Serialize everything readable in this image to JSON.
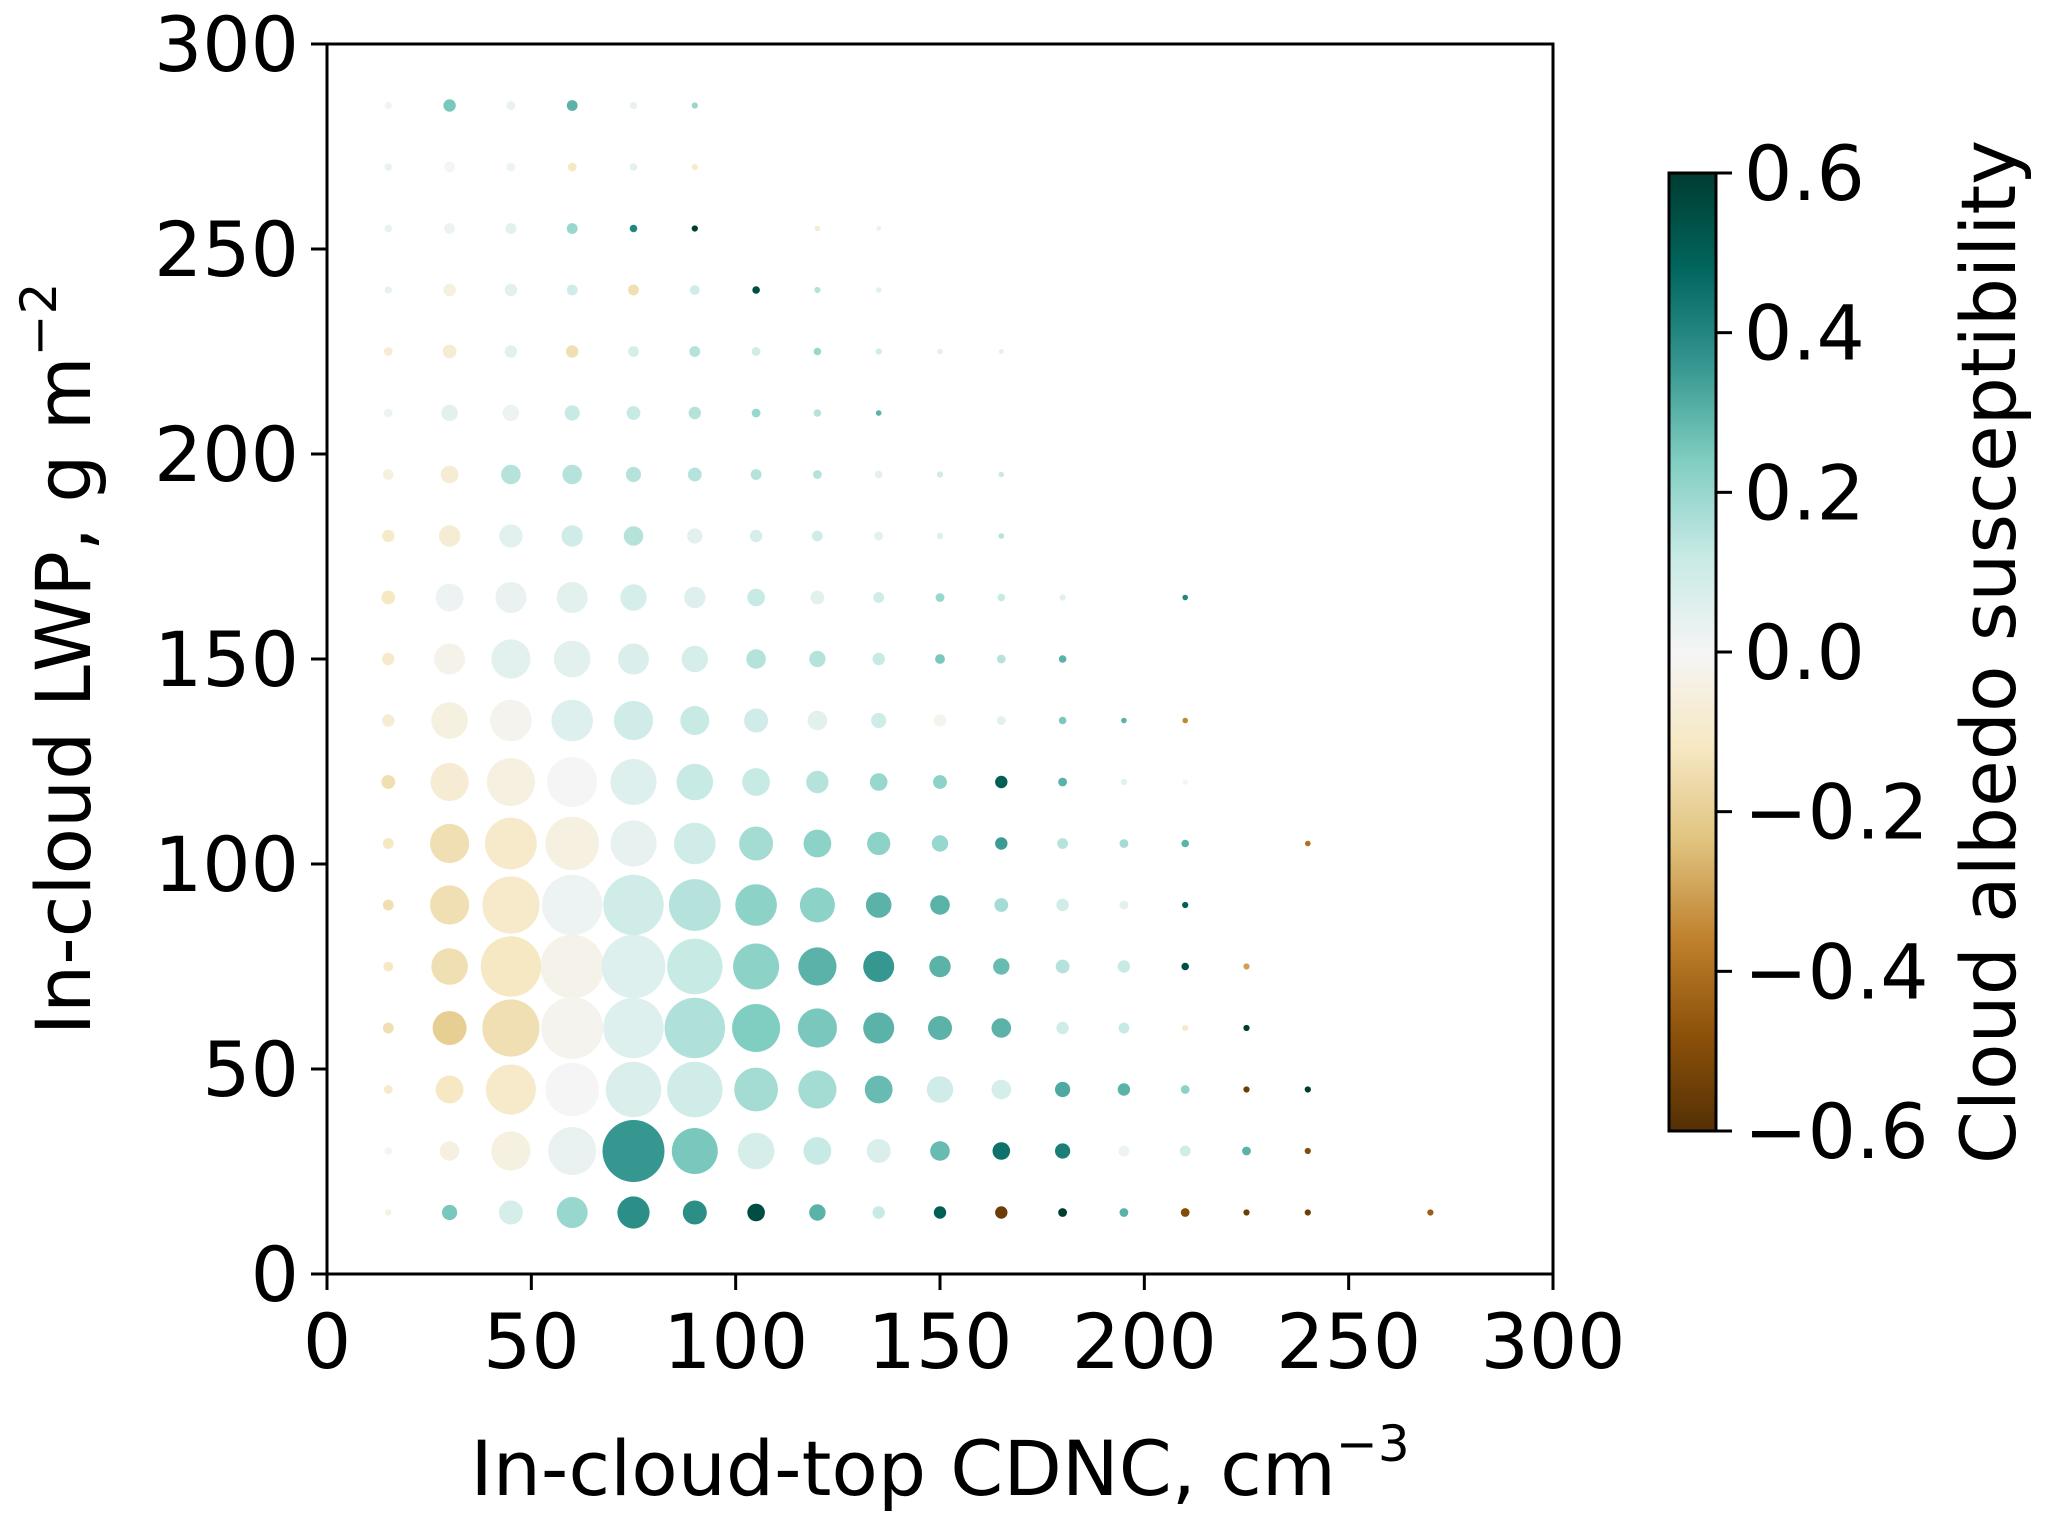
{
  "chart_data": {
    "type": "scatter",
    "encoding": "bubble: marker area shows sample frequency, marker colour shows cloud albedo susceptibility",
    "xlabel": {
      "text": "In-cloud-top CDNC, cm",
      "sup": "−3"
    },
    "ylabel": {
      "text": "In-cloud LWP, g m",
      "sup": "−2"
    },
    "xlim": [
      0,
      300
    ],
    "ylim": [
      0,
      300
    ],
    "xticks": [
      0,
      50,
      100,
      150,
      200,
      250,
      300
    ],
    "yticks": [
      0,
      50,
      100,
      150,
      200,
      250,
      300
    ],
    "xtick_labels": [
      "0",
      "50",
      "100",
      "150",
      "200",
      "250",
      "300"
    ],
    "ytick_labels": [
      "0",
      "50",
      "100",
      "150",
      "200",
      "250",
      "300"
    ],
    "grid": false,
    "colorbar": {
      "label": "Cloud albedo susceptibility",
      "range": [
        -0.6,
        0.6
      ],
      "ticks": [
        0.6,
        0.4,
        0.2,
        0.0,
        -0.2,
        -0.4,
        -0.6
      ],
      "tick_labels": [
        "0.6",
        "0.4",
        "0.2",
        "0.0",
        "−0.2",
        "−0.4",
        "−0.6"
      ],
      "colormap": "BrBG",
      "colormap_stops": [
        "#543005",
        "#8c510a",
        "#bf812d",
        "#dfc27d",
        "#f6e8c3",
        "#f5f5f5",
        "#c7eae5",
        "#80cdc1",
        "#35978f",
        "#01665e",
        "#003c30"
      ]
    },
    "point_fields": [
      "CDNC (cm^-3)",
      "LWP (g m^-2)",
      "albedo susceptibility",
      "relative frequency"
    ],
    "points": [
      [
        15,
        15,
        -0.05,
        0.01
      ],
      [
        30,
        15,
        0.25,
        0.06
      ],
      [
        45,
        15,
        0.08,
        0.15
      ],
      [
        60,
        15,
        0.2,
        0.25
      ],
      [
        75,
        15,
        0.38,
        0.27
      ],
      [
        90,
        15,
        0.38,
        0.15
      ],
      [
        105,
        15,
        0.55,
        0.08
      ],
      [
        120,
        15,
        0.3,
        0.07
      ],
      [
        135,
        15,
        0.12,
        0.04
      ],
      [
        150,
        15,
        0.5,
        0.04
      ],
      [
        165,
        15,
        -0.55,
        0.04
      ],
      [
        180,
        15,
        0.6,
        0.02
      ],
      [
        195,
        15,
        0.3,
        0.02
      ],
      [
        210,
        15,
        -0.5,
        0.02
      ],
      [
        225,
        15,
        -0.55,
        0.01
      ],
      [
        240,
        15,
        -0.55,
        0.01
      ],
      [
        270,
        15,
        -0.45,
        0.01
      ],
      [
        15,
        30,
        -0.02,
        0.015
      ],
      [
        30,
        30,
        -0.05,
        0.1
      ],
      [
        45,
        30,
        -0.05,
        0.4
      ],
      [
        60,
        30,
        0.03,
        0.6
      ],
      [
        75,
        30,
        0.36,
        1.0
      ],
      [
        90,
        30,
        0.25,
        0.55
      ],
      [
        105,
        30,
        0.08,
        0.35
      ],
      [
        120,
        30,
        0.12,
        0.2
      ],
      [
        135,
        30,
        0.07,
        0.15
      ],
      [
        150,
        30,
        0.28,
        0.1
      ],
      [
        165,
        30,
        0.45,
        0.08
      ],
      [
        180,
        30,
        0.42,
        0.06
      ],
      [
        195,
        30,
        0.02,
        0.03
      ],
      [
        210,
        30,
        0.1,
        0.03
      ],
      [
        225,
        30,
        0.3,
        0.02
      ],
      [
        240,
        30,
        -0.5,
        0.01
      ],
      [
        15,
        45,
        -0.1,
        0.02
      ],
      [
        30,
        45,
        -0.12,
        0.2
      ],
      [
        45,
        45,
        -0.1,
        0.65
      ],
      [
        60,
        45,
        0.0,
        0.75
      ],
      [
        75,
        45,
        0.07,
        0.8
      ],
      [
        90,
        45,
        0.1,
        0.8
      ],
      [
        105,
        45,
        0.18,
        0.5
      ],
      [
        120,
        45,
        0.18,
        0.38
      ],
      [
        135,
        45,
        0.28,
        0.2
      ],
      [
        150,
        45,
        0.1,
        0.18
      ],
      [
        165,
        45,
        0.08,
        0.1
      ],
      [
        180,
        45,
        0.32,
        0.06
      ],
      [
        195,
        45,
        0.3,
        0.04
      ],
      [
        210,
        45,
        0.22,
        0.02
      ],
      [
        225,
        45,
        -0.55,
        0.01
      ],
      [
        240,
        45,
        0.6,
        0.01
      ],
      [
        15,
        60,
        -0.15,
        0.03
      ],
      [
        30,
        60,
        -0.2,
        0.3
      ],
      [
        45,
        60,
        -0.15,
        0.85
      ],
      [
        60,
        60,
        -0.02,
        1.0
      ],
      [
        75,
        60,
        0.06,
        0.95
      ],
      [
        90,
        60,
        0.16,
        0.95
      ],
      [
        105,
        60,
        0.24,
        0.6
      ],
      [
        120,
        60,
        0.25,
        0.4
      ],
      [
        135,
        60,
        0.3,
        0.25
      ],
      [
        150,
        60,
        0.3,
        0.15
      ],
      [
        165,
        60,
        0.3,
        0.1
      ],
      [
        180,
        60,
        0.1,
        0.04
      ],
      [
        195,
        60,
        0.12,
        0.03
      ],
      [
        210,
        60,
        -0.1,
        0.01
      ],
      [
        225,
        60,
        0.6,
        0.01
      ],
      [
        15,
        75,
        -0.12,
        0.025
      ],
      [
        30,
        75,
        -0.15,
        0.35
      ],
      [
        45,
        75,
        -0.12,
        0.95
      ],
      [
        60,
        75,
        -0.03,
        1.05
      ],
      [
        75,
        75,
        0.06,
        1.05
      ],
      [
        90,
        75,
        0.12,
        0.8
      ],
      [
        105,
        75,
        0.22,
        0.55
      ],
      [
        120,
        75,
        0.3,
        0.38
      ],
      [
        135,
        75,
        0.36,
        0.25
      ],
      [
        150,
        75,
        0.3,
        0.12
      ],
      [
        165,
        75,
        0.28,
        0.07
      ],
      [
        180,
        75,
        0.15,
        0.05
      ],
      [
        195,
        75,
        0.12,
        0.04
      ],
      [
        210,
        75,
        0.55,
        0.015
      ],
      [
        225,
        75,
        -0.3,
        0.01
      ],
      [
        15,
        90,
        -0.15,
        0.03
      ],
      [
        30,
        90,
        -0.15,
        0.4
      ],
      [
        45,
        90,
        -0.1,
        0.85
      ],
      [
        60,
        90,
        0.02,
        0.95
      ],
      [
        75,
        90,
        0.1,
        0.95
      ],
      [
        90,
        90,
        0.15,
        0.7
      ],
      [
        105,
        90,
        0.22,
        0.45
      ],
      [
        120,
        90,
        0.22,
        0.32
      ],
      [
        135,
        90,
        0.3,
        0.17
      ],
      [
        150,
        90,
        0.3,
        0.1
      ],
      [
        165,
        90,
        0.18,
        0.05
      ],
      [
        180,
        90,
        0.1,
        0.04
      ],
      [
        195,
        90,
        0.05,
        0.02
      ],
      [
        210,
        90,
        0.5,
        0.01
      ],
      [
        15,
        105,
        -0.12,
        0.03
      ],
      [
        30,
        105,
        -0.15,
        0.4
      ],
      [
        45,
        105,
        -0.1,
        0.7
      ],
      [
        60,
        105,
        -0.05,
        0.75
      ],
      [
        75,
        105,
        0.04,
        0.55
      ],
      [
        90,
        105,
        0.1,
        0.45
      ],
      [
        105,
        105,
        0.18,
        0.3
      ],
      [
        120,
        105,
        0.22,
        0.2
      ],
      [
        135,
        105,
        0.22,
        0.14
      ],
      [
        150,
        105,
        0.2,
        0.07
      ],
      [
        165,
        105,
        0.35,
        0.04
      ],
      [
        180,
        105,
        0.15,
        0.03
      ],
      [
        195,
        105,
        0.18,
        0.02
      ],
      [
        210,
        105,
        0.3,
        0.015
      ],
      [
        240,
        105,
        -0.4,
        0.008
      ],
      [
        15,
        120,
        -0.15,
        0.05
      ],
      [
        30,
        120,
        -0.08,
        0.38
      ],
      [
        45,
        120,
        -0.05,
        0.6
      ],
      [
        60,
        120,
        0.0,
        0.65
      ],
      [
        75,
        120,
        0.06,
        0.55
      ],
      [
        90,
        120,
        0.12,
        0.35
      ],
      [
        105,
        120,
        0.12,
        0.2
      ],
      [
        120,
        120,
        0.15,
        0.13
      ],
      [
        135,
        120,
        0.2,
        0.08
      ],
      [
        150,
        120,
        0.22,
        0.05
      ],
      [
        165,
        120,
        0.5,
        0.04
      ],
      [
        180,
        120,
        0.3,
        0.02
      ],
      [
        195,
        120,
        0.05,
        0.01
      ],
      [
        210,
        120,
        0.0,
        0.008
      ],
      [
        15,
        135,
        -0.08,
        0.04
      ],
      [
        30,
        135,
        -0.05,
        0.35
      ],
      [
        45,
        135,
        -0.02,
        0.45
      ],
      [
        60,
        135,
        0.06,
        0.45
      ],
      [
        75,
        135,
        0.1,
        0.4
      ],
      [
        90,
        135,
        0.12,
        0.22
      ],
      [
        105,
        135,
        0.1,
        0.15
      ],
      [
        120,
        135,
        0.05,
        0.1
      ],
      [
        135,
        135,
        0.1,
        0.06
      ],
      [
        150,
        135,
        -0.02,
        0.04
      ],
      [
        165,
        135,
        0.05,
        0.02
      ],
      [
        180,
        135,
        0.25,
        0.015
      ],
      [
        195,
        135,
        0.3,
        0.008
      ],
      [
        210,
        135,
        -0.35,
        0.008
      ],
      [
        15,
        150,
        -0.1,
        0.04
      ],
      [
        30,
        150,
        -0.03,
        0.25
      ],
      [
        45,
        150,
        0.05,
        0.4
      ],
      [
        60,
        150,
        0.05,
        0.35
      ],
      [
        75,
        150,
        0.07,
        0.25
      ],
      [
        90,
        150,
        0.08,
        0.18
      ],
      [
        105,
        150,
        0.15,
        0.1
      ],
      [
        120,
        150,
        0.15,
        0.07
      ],
      [
        135,
        150,
        0.12,
        0.04
      ],
      [
        150,
        150,
        0.25,
        0.025
      ],
      [
        165,
        150,
        0.15,
        0.02
      ],
      [
        180,
        150,
        0.3,
        0.015
      ],
      [
        15,
        165,
        -0.12,
        0.05
      ],
      [
        30,
        165,
        0.02,
        0.2
      ],
      [
        45,
        165,
        0.03,
        0.25
      ],
      [
        60,
        165,
        0.05,
        0.25
      ],
      [
        75,
        165,
        0.08,
        0.18
      ],
      [
        90,
        165,
        0.06,
        0.12
      ],
      [
        105,
        165,
        0.12,
        0.08
      ],
      [
        120,
        165,
        0.05,
        0.05
      ],
      [
        135,
        165,
        0.1,
        0.03
      ],
      [
        150,
        165,
        0.2,
        0.02
      ],
      [
        165,
        165,
        0.12,
        0.015
      ],
      [
        180,
        165,
        0.05,
        0.01
      ],
      [
        210,
        165,
        0.4,
        0.008
      ],
      [
        15,
        180,
        -0.1,
        0.04
      ],
      [
        30,
        180,
        -0.08,
        0.12
      ],
      [
        45,
        180,
        0.05,
        0.14
      ],
      [
        60,
        180,
        0.1,
        0.12
      ],
      [
        75,
        180,
        0.15,
        0.1
      ],
      [
        90,
        180,
        0.05,
        0.06
      ],
      [
        105,
        180,
        0.08,
        0.04
      ],
      [
        120,
        180,
        0.1,
        0.03
      ],
      [
        135,
        180,
        0.05,
        0.02
      ],
      [
        150,
        180,
        0.06,
        0.01
      ],
      [
        165,
        180,
        0.15,
        0.008
      ],
      [
        15,
        195,
        -0.05,
        0.03
      ],
      [
        30,
        195,
        -0.08,
        0.08
      ],
      [
        45,
        195,
        0.15,
        0.1
      ],
      [
        60,
        195,
        0.15,
        0.1
      ],
      [
        75,
        195,
        0.15,
        0.06
      ],
      [
        90,
        195,
        0.15,
        0.05
      ],
      [
        105,
        195,
        0.15,
        0.03
      ],
      [
        120,
        195,
        0.15,
        0.02
      ],
      [
        135,
        195,
        0.05,
        0.015
      ],
      [
        150,
        195,
        0.1,
        0.01
      ],
      [
        165,
        195,
        0.12,
        0.008
      ],
      [
        15,
        210,
        0.02,
        0.02
      ],
      [
        30,
        210,
        0.05,
        0.07
      ],
      [
        45,
        210,
        0.02,
        0.07
      ],
      [
        60,
        210,
        0.12,
        0.06
      ],
      [
        75,
        210,
        0.12,
        0.05
      ],
      [
        90,
        210,
        0.15,
        0.04
      ],
      [
        105,
        210,
        0.2,
        0.02
      ],
      [
        120,
        210,
        0.15,
        0.015
      ],
      [
        135,
        210,
        0.3,
        0.008
      ],
      [
        15,
        225,
        -0.08,
        0.02
      ],
      [
        30,
        225,
        -0.08,
        0.05
      ],
      [
        45,
        225,
        0.05,
        0.04
      ],
      [
        60,
        225,
        -0.15,
        0.04
      ],
      [
        75,
        225,
        0.08,
        0.03
      ],
      [
        90,
        225,
        0.15,
        0.03
      ],
      [
        105,
        225,
        0.1,
        0.02
      ],
      [
        120,
        225,
        0.2,
        0.015
      ],
      [
        135,
        225,
        0.1,
        0.01
      ],
      [
        150,
        225,
        0.05,
        0.008
      ],
      [
        165,
        225,
        0.05,
        0.006
      ],
      [
        15,
        240,
        0.03,
        0.015
      ],
      [
        30,
        240,
        -0.05,
        0.04
      ],
      [
        45,
        240,
        0.05,
        0.04
      ],
      [
        60,
        240,
        0.1,
        0.03
      ],
      [
        75,
        240,
        -0.15,
        0.03
      ],
      [
        90,
        240,
        0.1,
        0.025
      ],
      [
        105,
        240,
        0.55,
        0.015
      ],
      [
        120,
        240,
        0.15,
        0.01
      ],
      [
        135,
        240,
        0.05,
        0.008
      ],
      [
        15,
        255,
        0.03,
        0.015
      ],
      [
        30,
        255,
        0.02,
        0.03
      ],
      [
        45,
        255,
        0.05,
        0.03
      ],
      [
        60,
        255,
        0.2,
        0.03
      ],
      [
        75,
        255,
        0.4,
        0.015
      ],
      [
        90,
        255,
        0.6,
        0.01
      ],
      [
        120,
        255,
        -0.08,
        0.008
      ],
      [
        135,
        255,
        0.03,
        0.006
      ],
      [
        15,
        270,
        0.03,
        0.015
      ],
      [
        30,
        270,
        0.0,
        0.03
      ],
      [
        45,
        270,
        0.02,
        0.02
      ],
      [
        60,
        270,
        -0.12,
        0.02
      ],
      [
        75,
        270,
        0.05,
        0.015
      ],
      [
        90,
        270,
        -0.1,
        0.01
      ],
      [
        15,
        285,
        -0.02,
        0.015
      ],
      [
        30,
        285,
        0.25,
        0.04
      ],
      [
        45,
        285,
        0.03,
        0.02
      ],
      [
        60,
        285,
        0.3,
        0.03
      ],
      [
        75,
        285,
        0.03,
        0.015
      ],
      [
        90,
        285,
        0.2,
        0.01
      ]
    ]
  }
}
